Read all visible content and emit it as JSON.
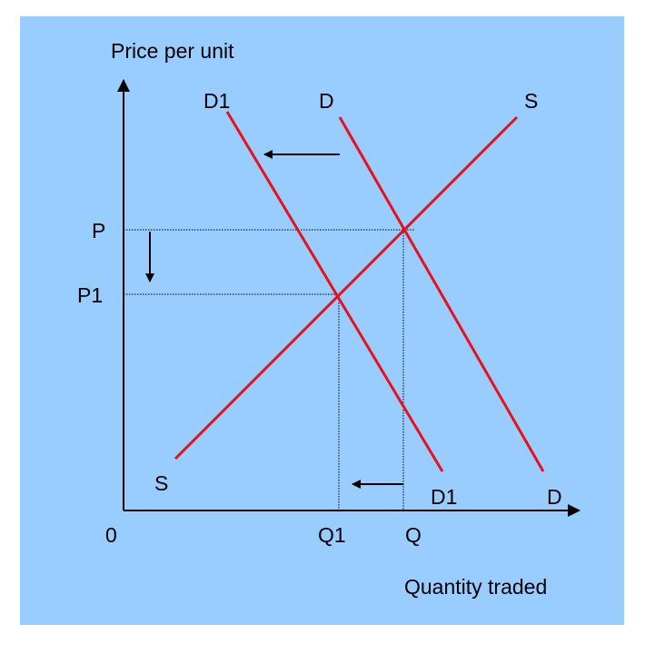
{
  "diagram": {
    "y_axis_label": "Price per unit",
    "x_axis_label": "Quantity traded",
    "origin_label": "0",
    "curves": {
      "demand_original": {
        "top_label": "D",
        "bottom_label": "D"
      },
      "demand_shifted": {
        "top_label": "D1",
        "bottom_label": "D1"
      },
      "supply": {
        "top_label": "S",
        "bottom_label": "S"
      }
    },
    "price_levels": [
      "P",
      "P1"
    ],
    "quantity_levels": [
      "Q",
      "Q1"
    ],
    "colors": {
      "background": "#99ccff",
      "curve": "#e8101a",
      "axis": "#000000"
    }
  }
}
